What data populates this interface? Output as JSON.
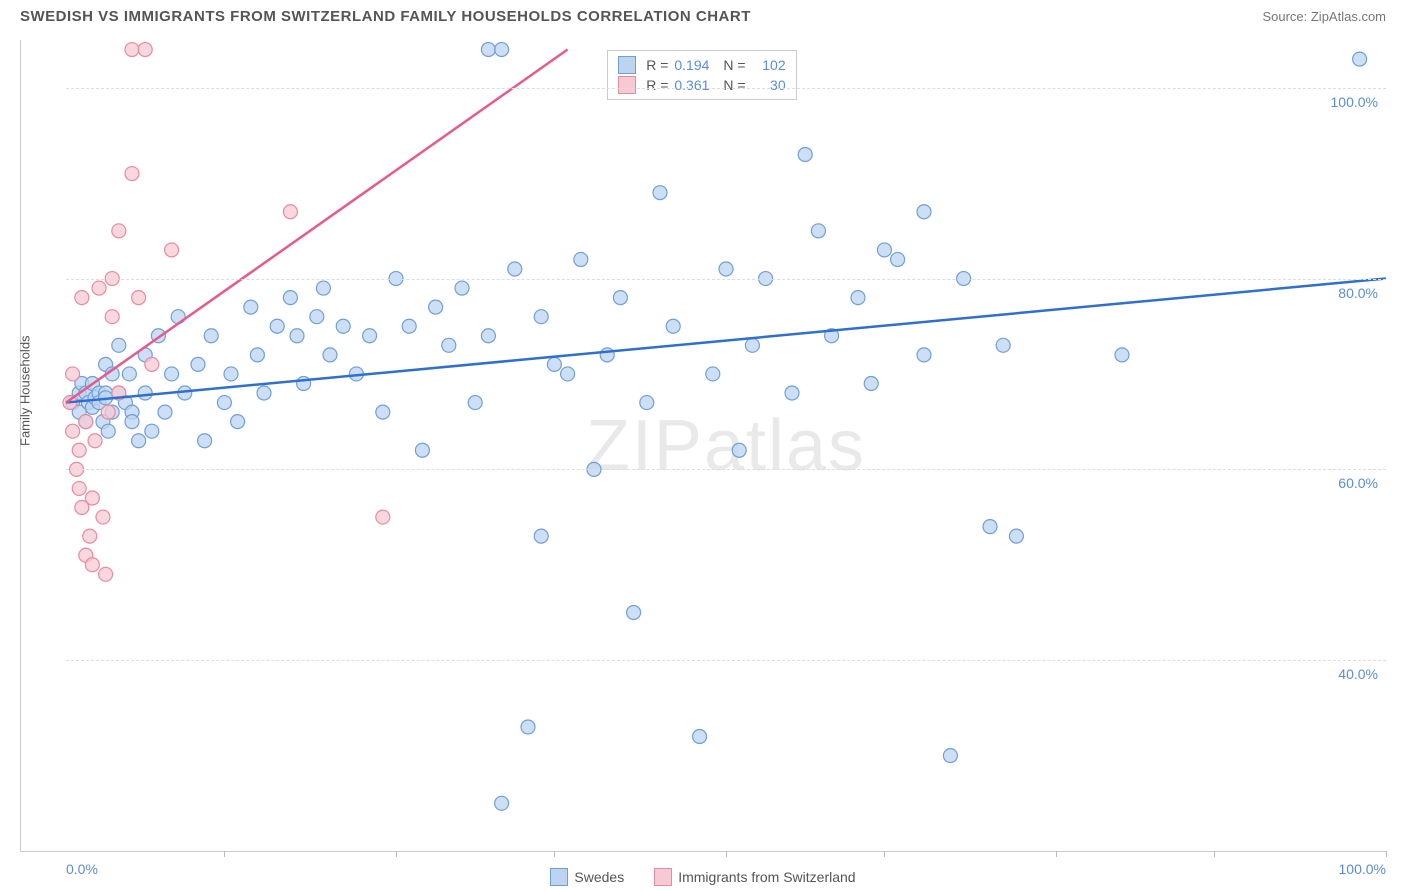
{
  "title": "SWEDISH VS IMMIGRANTS FROM SWITZERLAND FAMILY HOUSEHOLDS CORRELATION CHART",
  "source": "Source: ZipAtlas.com",
  "watermark_a": "ZIP",
  "watermark_b": "atlas",
  "chart": {
    "type": "scatter",
    "background_color": "#ffffff",
    "grid_color": "#dddddd",
    "axis_color": "#cccccc",
    "y_axis_title": "Family Households",
    "x_range": [
      0,
      100
    ],
    "y_range": [
      20,
      105
    ],
    "y_ticks": [
      {
        "value": 40,
        "label": "40.0%"
      },
      {
        "value": 60,
        "label": "60.0%"
      },
      {
        "value": 80,
        "label": "80.0%"
      },
      {
        "value": 100,
        "label": "100.0%"
      }
    ],
    "y_label_color": "#5b8dd6",
    "x_tick_positions": [
      12,
      25,
      37,
      50,
      62,
      75,
      87,
      100
    ],
    "x_min_label": "0.0%",
    "x_max_label": "100.0%",
    "marker_radius": 7,
    "marker_stroke_width": 1.2,
    "series": [
      {
        "name": "Swedes",
        "color_fill": "#bcd4f0",
        "color_stroke": "#6f9fd8",
        "line_color": "#2e6fd0",
        "line_width": 2.5,
        "R": "0.194",
        "N": "102",
        "trend": {
          "x1": 0,
          "y1": 67,
          "x2": 100,
          "y2": 80
        },
        "points": [
          [
            0.5,
            67
          ],
          [
            1,
            68
          ],
          [
            1,
            66
          ],
          [
            1.2,
            69
          ],
          [
            1.5,
            65
          ],
          [
            1.5,
            68
          ],
          [
            1.7,
            67
          ],
          [
            2,
            69
          ],
          [
            2,
            66.5
          ],
          [
            2.2,
            67.5
          ],
          [
            2.5,
            68
          ],
          [
            2.5,
            67
          ],
          [
            2.8,
            65
          ],
          [
            3,
            68
          ],
          [
            3,
            67.5
          ],
          [
            3,
            71
          ],
          [
            3.2,
            64
          ],
          [
            3.5,
            70
          ],
          [
            3.5,
            66
          ],
          [
            4,
            68
          ],
          [
            4,
            73
          ],
          [
            4.5,
            67
          ],
          [
            4.8,
            70
          ],
          [
            5,
            66
          ],
          [
            5,
            65
          ],
          [
            5.5,
            63
          ],
          [
            6,
            72
          ],
          [
            6,
            68
          ],
          [
            6.5,
            64
          ],
          [
            7,
            74
          ],
          [
            7.5,
            66
          ],
          [
            8,
            70
          ],
          [
            8.5,
            76
          ],
          [
            9,
            68
          ],
          [
            10,
            71
          ],
          [
            10.5,
            63
          ],
          [
            11,
            74
          ],
          [
            12,
            67
          ],
          [
            12.5,
            70
          ],
          [
            13,
            65
          ],
          [
            14,
            77
          ],
          [
            14.5,
            72
          ],
          [
            15,
            68
          ],
          [
            16,
            75
          ],
          [
            17,
            78
          ],
          [
            17.5,
            74
          ],
          [
            18,
            69
          ],
          [
            19,
            76
          ],
          [
            19.5,
            79
          ],
          [
            20,
            72
          ],
          [
            21,
            75
          ],
          [
            22,
            70
          ],
          [
            23,
            74
          ],
          [
            24,
            66
          ],
          [
            25,
            80
          ],
          [
            26,
            75
          ],
          [
            27,
            62
          ],
          [
            28,
            77
          ],
          [
            29,
            73
          ],
          [
            30,
            79
          ],
          [
            31,
            67
          ],
          [
            32,
            74
          ],
          [
            32,
            104
          ],
          [
            33,
            104
          ],
          [
            33,
            25
          ],
          [
            34,
            81
          ],
          [
            35,
            33
          ],
          [
            36,
            53
          ],
          [
            36,
            76
          ],
          [
            38,
            70
          ],
          [
            39,
            82
          ],
          [
            40,
            60
          ],
          [
            41,
            72
          ],
          [
            42,
            78
          ],
          [
            43,
            45
          ],
          [
            45,
            89
          ],
          [
            46,
            75
          ],
          [
            48,
            32
          ],
          [
            49,
            70
          ],
          [
            50,
            81
          ],
          [
            51,
            62
          ],
          [
            52,
            73
          ],
          [
            53,
            80
          ],
          [
            55,
            68
          ],
          [
            56,
            93
          ],
          [
            57,
            85
          ],
          [
            58,
            74
          ],
          [
            60,
            78
          ],
          [
            61,
            69
          ],
          [
            63,
            82
          ],
          [
            65,
            72
          ],
          [
            65,
            87
          ],
          [
            67,
            30
          ],
          [
            68,
            80
          ],
          [
            70,
            54
          ],
          [
            71,
            73
          ],
          [
            72,
            53
          ],
          [
            80,
            72
          ],
          [
            98,
            103
          ],
          [
            62,
            83
          ],
          [
            44,
            67
          ],
          [
            37,
            71
          ]
        ]
      },
      {
        "name": "Immigrants from Switzerland",
        "color_fill": "#f6c9d4",
        "color_stroke": "#e88aa3",
        "line_color": "#e75a8a",
        "line_width": 2.5,
        "R": "0.361",
        "N": "30",
        "trend": {
          "x1": 0,
          "y1": 67,
          "x2": 38,
          "y2": 104
        },
        "points": [
          [
            0.3,
            67
          ],
          [
            0.5,
            64
          ],
          [
            0.5,
            70
          ],
          [
            0.8,
            60
          ],
          [
            1,
            58
          ],
          [
            1,
            62
          ],
          [
            1.2,
            78
          ],
          [
            1.2,
            56
          ],
          [
            1.5,
            65
          ],
          [
            1.5,
            51
          ],
          [
            1.8,
            53
          ],
          [
            2,
            57
          ],
          [
            2,
            50
          ],
          [
            2.2,
            63
          ],
          [
            2.5,
            79
          ],
          [
            2.8,
            55
          ],
          [
            3,
            49
          ],
          [
            3.2,
            66
          ],
          [
            3.5,
            80
          ],
          [
            3.5,
            76
          ],
          [
            4,
            68
          ],
          [
            4,
            85
          ],
          [
            5,
            91
          ],
          [
            5,
            104
          ],
          [
            5.5,
            78
          ],
          [
            6,
            104
          ],
          [
            6.5,
            71
          ],
          [
            8,
            83
          ],
          [
            17,
            87
          ],
          [
            24,
            55
          ]
        ]
      }
    ],
    "legend_bottom": [
      {
        "label": "Swedes",
        "fill": "#bcd4f0",
        "stroke": "#6f9fd8"
      },
      {
        "label": "Immigrants from Switzerland",
        "fill": "#f6c9d4",
        "stroke": "#e88aa3"
      }
    ]
  }
}
